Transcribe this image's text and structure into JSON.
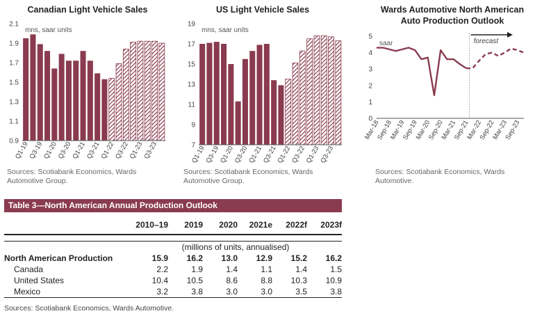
{
  "chart_data": [
    {
      "type": "bar",
      "title": "Canadian Light Vehicle Sales",
      "annotation": "mns, saar units",
      "categories": [
        "Q1-19",
        "Q2-19",
        "Q3-19",
        "Q4-19",
        "Q1-20",
        "Q2-20",
        "Q3-20",
        "Q4-20",
        "Q1-21",
        "Q2-21",
        "Q3-21",
        "Q4-21",
        "Q1-22",
        "Q2-22",
        "Q3-22",
        "Q4-22",
        "Q1-23",
        "Q2-23",
        "Q3-23",
        "Q4-23"
      ],
      "tick_labels": [
        "Q1-19",
        "Q3-19",
        "Q1-20",
        "Q3-20",
        "Q1-21",
        "Q3-21",
        "Q1-22",
        "Q3-22",
        "Q1-23",
        "Q3-23"
      ],
      "values": [
        1.95,
        1.99,
        1.89,
        1.82,
        1.64,
        1.79,
        1.72,
        1.72,
        1.82,
        1.72,
        1.59,
        1.53,
        1.54,
        1.69,
        1.84,
        1.91,
        1.92,
        1.92,
        1.92,
        1.9
      ],
      "forecast_from_index": 12,
      "ylim": [
        0.9,
        2.1
      ],
      "yticks": [
        "0.9",
        "1.1",
        "1.3",
        "1.5",
        "1.7",
        "1.9",
        "2.1"
      ],
      "color": "#8a3b4f",
      "source": "Sources: Scotiabank Economics, Wards Automotive Group."
    },
    {
      "type": "bar",
      "title": "US Light Vehicle Sales",
      "annotation": "mns, saar units",
      "categories": [
        "Q1-19",
        "Q2-19",
        "Q3-19",
        "Q4-19",
        "Q1-20",
        "Q2-20",
        "Q3-20",
        "Q4-20",
        "Q1-21",
        "Q2-21",
        "Q3-21",
        "Q4-21",
        "Q1-22",
        "Q2-22",
        "Q3-22",
        "Q4-22",
        "Q1-23",
        "Q2-23",
        "Q3-23",
        "Q4-23"
      ],
      "tick_labels": [
        "Q1-19",
        "Q3-19",
        "Q1-20",
        "Q3-20",
        "Q1-21",
        "Q3-21",
        "Q1-22",
        "Q3-22",
        "Q1-23",
        "Q3-23"
      ],
      "values": [
        17.0,
        17.1,
        17.2,
        17.0,
        15.0,
        11.3,
        15.5,
        16.3,
        16.9,
        17.0,
        13.4,
        12.9,
        13.5,
        15.1,
        16.3,
        17.5,
        17.8,
        17.8,
        17.7,
        17.3
      ],
      "forecast_from_index": 12,
      "ylim": [
        7,
        19
      ],
      "yticks": [
        "7",
        "9",
        "11",
        "13",
        "15",
        "17",
        "19"
      ],
      "color": "#8a3b4f",
      "source": "Sources: Scotiabank Economics, Wards Automotive Group."
    },
    {
      "type": "line",
      "title": "Wards Automotive North American Auto Production Outlook",
      "annotation": "saar",
      "forecast_label": "forecast",
      "x": [
        "Mar-18",
        "Jun-18",
        "Sep-18",
        "Dec-18",
        "Mar-19",
        "Jun-19",
        "Sep-19",
        "Dec-19",
        "Mar-20",
        "Jun-20",
        "Sep-20",
        "Dec-20",
        "Mar-21",
        "Jun-21",
        "Sep-21",
        "Dec-21",
        "Mar-22",
        "Jun-22",
        "Sep-22",
        "Dec-22",
        "Mar-23",
        "Jun-23",
        "Sep-23",
        "Dec-23"
      ],
      "tick_labels": [
        "Mar-18",
        "Sep-18",
        "Mar-19",
        "Sep-19",
        "Mar-20",
        "Sep-20",
        "Mar-21",
        "Sep-21",
        "Mar-22",
        "Sep-22",
        "Mar-23",
        "Sep-23"
      ],
      "values": [
        4.3,
        4.3,
        4.2,
        4.1,
        4.2,
        4.3,
        4.15,
        3.6,
        3.7,
        1.4,
        4.15,
        3.6,
        3.6,
        3.3,
        3.05,
        3.05,
        3.5,
        3.9,
        4.0,
        3.8,
        4.0,
        4.25,
        4.15,
        4.0
      ],
      "forecast_from_index": 15,
      "ylim": [
        0,
        5
      ],
      "yticks": [
        "0",
        "1",
        "2",
        "3",
        "4",
        "5"
      ],
      "color": "#8a3b4f",
      "source": "Sources: Scotiabank Economics, Wards Automotive."
    }
  ],
  "table": {
    "banner": "Table 3—North American Annual Production Outlook",
    "columns": [
      "2010–19",
      "2019",
      "2020",
      "2021e",
      "2022f",
      "2023f"
    ],
    "units": "(millions of units, annualised)",
    "rows": [
      {
        "label": "North American Production",
        "values": [
          "15.9",
          "16.2",
          "13.0",
          "12.9",
          "15.2",
          "16.2"
        ]
      },
      {
        "label": "Canada",
        "values": [
          "2.2",
          "1.9",
          "1.4",
          "1.1",
          "1.4",
          "1.5"
        ]
      },
      {
        "label": "United States",
        "values": [
          "10.4",
          "10.5",
          "8.6",
          "8.8",
          "10.3",
          "10.9"
        ]
      },
      {
        "label": "Mexico",
        "values": [
          "3.2",
          "3.8",
          "3.0",
          "3.0",
          "3.5",
          "3.8"
        ]
      }
    ],
    "source": "Sources: Scotiabank Economics, Wards Automotive."
  }
}
